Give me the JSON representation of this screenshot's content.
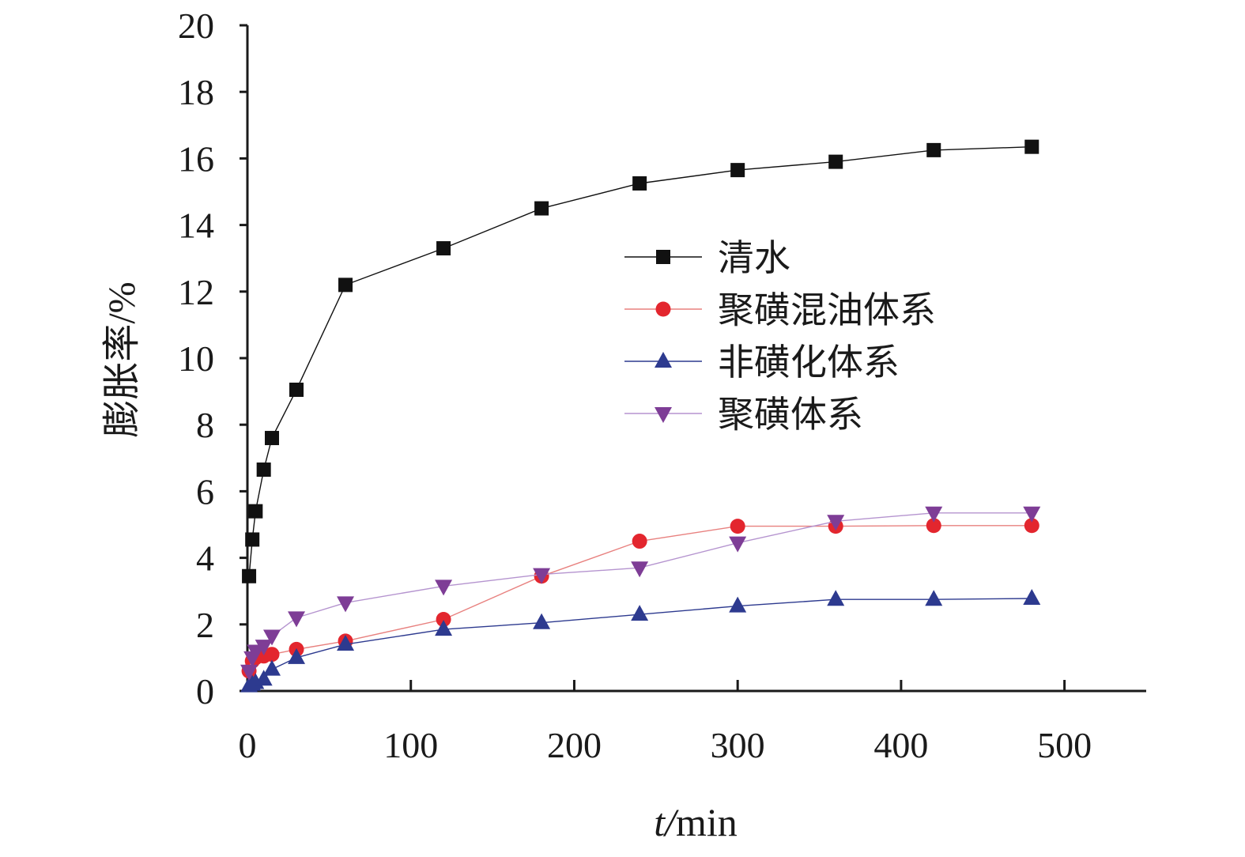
{
  "chart_data": {
    "type": "line",
    "xlabel": "t/min",
    "ylabel": "膨胀率/%",
    "xlim": [
      0,
      550
    ],
    "ylim": [
      0,
      20
    ],
    "xticks": [
      0,
      100,
      200,
      300,
      400,
      500
    ],
    "yticks": [
      0,
      2,
      4,
      6,
      8,
      10,
      12,
      14,
      16,
      18,
      20
    ],
    "grid": false,
    "legend": "right",
    "series": [
      {
        "name": "清水",
        "marker": "square",
        "color": "#111111",
        "line_color": "#111111",
        "x": [
          1,
          3,
          5,
          10,
          15,
          30,
          60,
          120,
          180,
          240,
          300,
          360,
          420,
          480
        ],
        "y": [
          3.45,
          4.55,
          5.4,
          6.65,
          7.6,
          9.05,
          12.2,
          13.3,
          14.5,
          15.25,
          15.65,
          15.9,
          16.25,
          16.35
        ]
      },
      {
        "name": "聚磺混油体系",
        "marker": "circle",
        "color": "#e3262e",
        "line_color": "#e8817f",
        "x": [
          1,
          3,
          5,
          10,
          15,
          30,
          60,
          120,
          180,
          240,
          300,
          360,
          420,
          480
        ],
        "y": [
          0.6,
          0.9,
          1.0,
          1.05,
          1.1,
          1.25,
          1.5,
          2.15,
          3.45,
          4.5,
          4.95,
          4.95,
          4.97,
          4.97
        ]
      },
      {
        "name": "非磺化体系",
        "marker": "triangle-up",
        "color": "#2d3a8f",
        "line_color": "#2d3a8f",
        "x": [
          1,
          3,
          5,
          10,
          15,
          30,
          60,
          120,
          180,
          240,
          300,
          360,
          420,
          480
        ],
        "y": [
          0.15,
          0.2,
          0.25,
          0.35,
          0.65,
          1.0,
          1.4,
          1.85,
          2.05,
          2.3,
          2.55,
          2.75,
          2.75,
          2.78
        ]
      },
      {
        "name": "聚磺体系",
        "marker": "triangle-down",
        "color": "#7e3d96",
        "line_color": "#b594cf",
        "x": [
          1,
          3,
          5,
          10,
          15,
          30,
          60,
          120,
          180,
          240,
          300,
          360,
          420,
          480
        ],
        "y": [
          0.6,
          1.0,
          1.2,
          1.35,
          1.65,
          2.2,
          2.65,
          3.15,
          3.5,
          3.7,
          4.45,
          5.1,
          5.35,
          5.35
        ]
      }
    ]
  }
}
